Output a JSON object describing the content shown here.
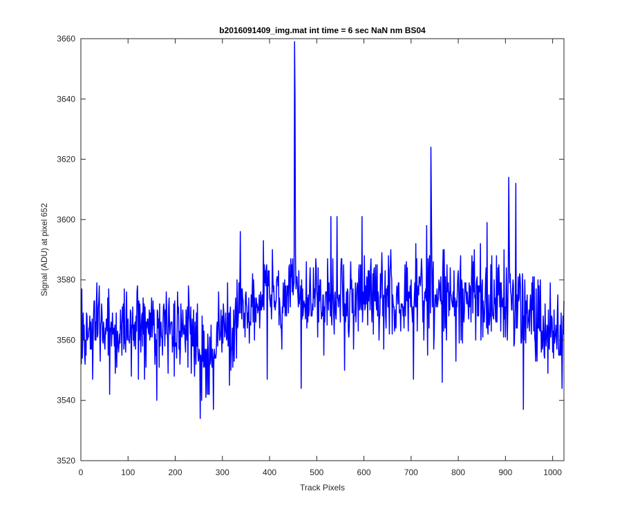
{
  "chart_data": {
    "type": "line",
    "title": "b2016091409_img.mat int time = 6 sec  NaN nm BS04",
    "xlabel": "Track Pixels",
    "ylabel": "Signal (ADU) at pixel 652",
    "xlim": [
      0,
      1024
    ],
    "ylim": [
      3520,
      3660
    ],
    "xticks": [
      0,
      100,
      200,
      300,
      400,
      500,
      600,
      700,
      800,
      900,
      1000
    ],
    "yticks": [
      3520,
      3540,
      3560,
      3580,
      3600,
      3620,
      3640,
      3660
    ],
    "grid": false,
    "series": [
      {
        "color": "#0000ff",
        "x_start": 1,
        "x_step": 1,
        "anchors": [
          [
            1,
            3562
          ],
          [
            5,
            3566
          ],
          [
            8,
            3550
          ],
          [
            15,
            3565
          ],
          [
            25,
            3558
          ],
          [
            35,
            3570
          ],
          [
            50,
            3562
          ],
          [
            60,
            3566
          ],
          [
            75,
            3560
          ],
          [
            90,
            3563
          ],
          [
            100,
            3562
          ],
          [
            120,
            3566
          ],
          [
            140,
            3562
          ],
          [
            155,
            3558
          ],
          [
            170,
            3563
          ],
          [
            185,
            3565
          ],
          [
            200,
            3562
          ],
          [
            220,
            3562
          ],
          [
            240,
            3560
          ],
          [
            252,
            3554
          ],
          [
            260,
            3556
          ],
          [
            275,
            3556
          ],
          [
            290,
            3560
          ],
          [
            305,
            3563
          ],
          [
            320,
            3560
          ],
          [
            335,
            3570
          ],
          [
            350,
            3567
          ],
          [
            365,
            3572
          ],
          [
            380,
            3575
          ],
          [
            395,
            3576
          ],
          [
            410,
            3574
          ],
          [
            425,
            3572
          ],
          [
            440,
            3576
          ],
          [
            455,
            3578
          ],
          [
            470,
            3576
          ],
          [
            485,
            3572
          ],
          [
            500,
            3573
          ],
          [
            515,
            3572
          ],
          [
            530,
            3574
          ],
          [
            550,
            3574
          ],
          [
            570,
            3573
          ],
          [
            590,
            3574
          ],
          [
            610,
            3575
          ],
          [
            630,
            3576
          ],
          [
            650,
            3574
          ],
          [
            670,
            3573
          ],
          [
            690,
            3574
          ],
          [
            710,
            3576
          ],
          [
            730,
            3576
          ],
          [
            750,
            3575
          ],
          [
            770,
            3574
          ],
          [
            790,
            3576
          ],
          [
            810,
            3574
          ],
          [
            830,
            3573
          ],
          [
            850,
            3574
          ],
          [
            870,
            3574
          ],
          [
            890,
            3573
          ],
          [
            905,
            3574
          ],
          [
            920,
            3572
          ],
          [
            935,
            3570
          ],
          [
            950,
            3567
          ],
          [
            965,
            3566
          ],
          [
            980,
            3564
          ],
          [
            995,
            3563
          ],
          [
            1010,
            3562
          ],
          [
            1024,
            3560
          ]
        ],
        "noise_sd": 7,
        "seed": 20160914,
        "clamp": [
          3540,
          3602
        ],
        "spikes": [
          [
            453,
            3659
          ],
          [
            454,
            3640
          ],
          [
            455,
            3588
          ],
          [
            742,
            3624
          ],
          [
            743,
            3605
          ],
          [
            907,
            3614
          ],
          [
            922,
            3612
          ],
          [
            596,
            3601
          ],
          [
            530,
            3601
          ],
          [
            543,
            3601
          ],
          [
            338,
            3596
          ],
          [
            861,
            3599
          ],
          [
            253,
            3534
          ],
          [
            938,
            3537
          ],
          [
            281,
            3537
          ],
          [
            467,
            3544
          ],
          [
            766,
            3546
          ],
          [
            161,
            3540
          ],
          [
            395,
            3547
          ],
          [
            559,
            3550
          ],
          [
            705,
            3547
          ],
          [
            1020,
            3544
          ],
          [
            268,
            3542
          ],
          [
            272,
            3542
          ]
        ]
      }
    ]
  }
}
